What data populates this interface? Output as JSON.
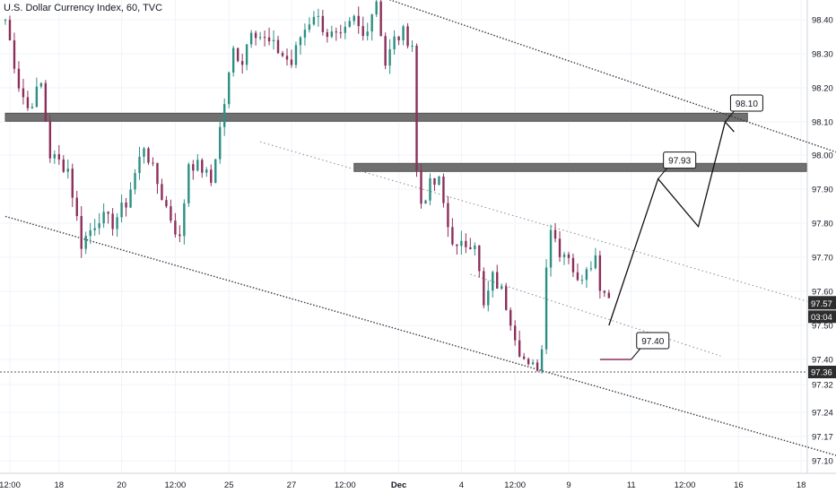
{
  "chart_data": {
    "type": "candlestick",
    "title": "U.S. Dollar Currency Index, 60, TVC",
    "y_range": [
      97.08,
      98.48
    ],
    "y_ticks": [
      {
        "label": "98.40",
        "value": 98.4
      },
      {
        "label": "98.30",
        "value": 98.3
      },
      {
        "label": "98.20",
        "value": 98.2
      },
      {
        "label": "98.10",
        "value": 98.1
      },
      {
        "label": "98.00",
        "value": 98.0
      },
      {
        "label": "97.90",
        "value": 97.9
      },
      {
        "label": "97.80",
        "value": 97.8
      },
      {
        "label": "97.70",
        "value": 97.7
      },
      {
        "label": "97.60",
        "value": 97.6
      },
      {
        "label": "97.50",
        "value": 97.5
      },
      {
        "label": "97.40",
        "value": 97.4
      },
      {
        "label": "97.32",
        "value": 97.32
      },
      {
        "label": "97.24",
        "value": 97.24
      },
      {
        "label": "97.17",
        "value": 97.17
      },
      {
        "label": "97.10",
        "value": 97.1
      }
    ],
    "x_ticks": [
      {
        "label": "12:00",
        "index": 1
      },
      {
        "label": "18",
        "index": 12
      },
      {
        "label": "20",
        "index": 26
      },
      {
        "label": "12:00",
        "index": 38
      },
      {
        "label": "25",
        "index": 50
      },
      {
        "label": "27",
        "index": 64
      },
      {
        "label": "12:00",
        "index": 76
      },
      {
        "label": "Dec",
        "index": 88
      },
      {
        "label": "4",
        "index": 102
      },
      {
        "label": "12:00",
        "index": 114
      },
      {
        "label": "9",
        "index": 126
      },
      {
        "label": "11",
        "index": 140
      },
      {
        "label": "12:00",
        "index": 152
      },
      {
        "label": "16",
        "index": 164
      },
      {
        "label": "18",
        "index": 178
      }
    ],
    "x_count": 190,
    "colors": {
      "up": "#2c8f84",
      "down": "#8c2f5a",
      "dark": "#2d2d2d",
      "grid": "#f0f3fa",
      "text": "#131722"
    },
    "key_close": [
      {
        "i": 0,
        "c": 98.4
      },
      {
        "i": 3,
        "c": 98.21
      },
      {
        "i": 5,
        "c": 98.14
      },
      {
        "i": 8,
        "c": 98.21
      },
      {
        "i": 10,
        "c": 98.0
      },
      {
        "i": 14,
        "c": 97.96
      },
      {
        "i": 17,
        "c": 97.74
      },
      {
        "i": 21,
        "c": 97.82
      },
      {
        "i": 24,
        "c": 97.8
      },
      {
        "i": 27,
        "c": 97.86
      },
      {
        "i": 31,
        "c": 98.03
      },
      {
        "i": 35,
        "c": 97.88
      },
      {
        "i": 39,
        "c": 97.75
      },
      {
        "i": 41,
        "c": 97.98
      },
      {
        "i": 44,
        "c": 97.96
      },
      {
        "i": 46,
        "c": 97.92
      },
      {
        "i": 48,
        "c": 98.08
      },
      {
        "i": 51,
        "c": 98.31
      },
      {
        "i": 53,
        "c": 98.28
      },
      {
        "i": 55,
        "c": 98.38
      },
      {
        "i": 58,
        "c": 98.34
      },
      {
        "i": 61,
        "c": 98.31
      },
      {
        "i": 64,
        "c": 98.27
      },
      {
        "i": 66,
        "c": 98.35
      },
      {
        "i": 69,
        "c": 98.42
      },
      {
        "i": 72,
        "c": 98.36
      },
      {
        "i": 75,
        "c": 98.34
      },
      {
        "i": 78,
        "c": 98.4
      },
      {
        "i": 80,
        "c": 98.35
      },
      {
        "i": 83,
        "c": 98.46
      },
      {
        "i": 85,
        "c": 98.27
      },
      {
        "i": 87,
        "c": 98.34
      },
      {
        "i": 89,
        "c": 98.36
      },
      {
        "i": 91,
        "c": 98.33
      },
      {
        "i": 92,
        "c": 97.95
      },
      {
        "i": 93,
        "c": 97.86
      },
      {
        "i": 95,
        "c": 97.91
      },
      {
        "i": 97,
        "c": 97.92
      },
      {
        "i": 99,
        "c": 97.79
      },
      {
        "i": 101,
        "c": 97.72
      },
      {
        "i": 103,
        "c": 97.74
      },
      {
        "i": 105,
        "c": 97.75
      },
      {
        "i": 107,
        "c": 97.55
      },
      {
        "i": 109,
        "c": 97.64
      },
      {
        "i": 111,
        "c": 97.6
      },
      {
        "i": 113,
        "c": 97.52
      },
      {
        "i": 115,
        "c": 97.43
      },
      {
        "i": 117,
        "c": 97.37
      },
      {
        "i": 119,
        "c": 97.38
      },
      {
        "i": 120,
        "c": 97.43
      },
      {
        "i": 121,
        "c": 97.69
      },
      {
        "i": 122,
        "c": 97.79
      },
      {
        "i": 124,
        "c": 97.72
      },
      {
        "i": 126,
        "c": 97.71
      },
      {
        "i": 128,
        "c": 97.62
      },
      {
        "i": 130,
        "c": 97.68
      },
      {
        "i": 132,
        "c": 97.7
      },
      {
        "i": 133,
        "c": 97.62
      },
      {
        "i": 135,
        "c": 97.58
      }
    ],
    "zones": [
      {
        "name": "resistance-98.10",
        "y_top": 98.115,
        "y_bottom": 98.095,
        "i_start": 0,
        "i_end": 166
      },
      {
        "name": "resistance-97.95",
        "y_top": 97.965,
        "y_bottom": 97.935,
        "i_start": 78,
        "i_end": 190
      }
    ],
    "support_line": {
      "value": 97.36,
      "label": "97.36"
    },
    "channel_lines": [
      {
        "name": "channel-upper",
        "from": [
          70,
          98.53
        ],
        "to": [
          190,
          97.99
        ],
        "style": "dense"
      },
      {
        "name": "channel-mid",
        "from": [
          57,
          98.04
        ],
        "to": [
          190,
          97.53
        ],
        "style": "sparse"
      },
      {
        "name": "channel-inner",
        "from": [
          104,
          97.65
        ],
        "to": [
          160,
          97.41
        ],
        "style": "sparse"
      },
      {
        "name": "channel-lower",
        "from": [
          0,
          97.82
        ],
        "to": [
          190,
          97.1
        ],
        "style": "dense"
      }
    ],
    "projection_path": [
      [
        135,
        97.5
      ],
      [
        146,
        97.93
      ],
      [
        155,
        97.79
      ],
      [
        161,
        98.1
      ],
      [
        163,
        98.07
      ]
    ],
    "target_line": {
      "from": [
        133,
        97.4
      ],
      "to": [
        140,
        97.4
      ]
    },
    "callouts": [
      {
        "label": "98.10",
        "i": 161,
        "value": 98.1
      },
      {
        "label": "97.93",
        "i": 146,
        "value": 97.93
      },
      {
        "label": "97.40",
        "i": 140,
        "value": 97.4
      }
    ],
    "price_label": "97.57",
    "price_value": 97.565,
    "countdown_label": "03:04",
    "support_tag": "97.36"
  }
}
